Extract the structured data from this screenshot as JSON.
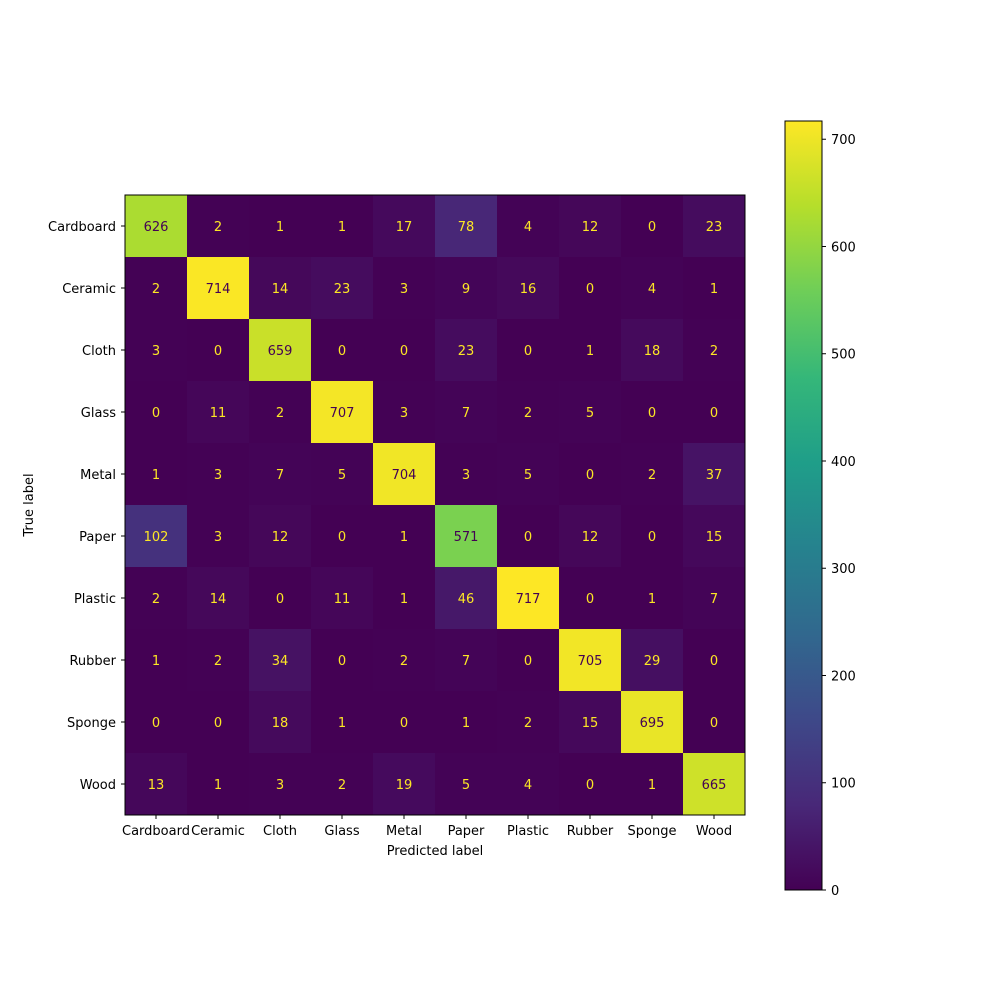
{
  "chart_data": {
    "type": "heatmap",
    "xlabel": "Predicted label",
    "ylabel": "True label",
    "x_categories": [
      "Cardboard",
      "Ceramic",
      "Cloth",
      "Glass",
      "Metal",
      "Paper",
      "Plastic",
      "Rubber",
      "Sponge",
      "Wood"
    ],
    "y_categories": [
      "Cardboard",
      "Ceramic",
      "Cloth",
      "Glass",
      "Metal",
      "Paper",
      "Plastic",
      "Rubber",
      "Sponge",
      "Wood"
    ],
    "values": [
      [
        626,
        2,
        1,
        1,
        17,
        78,
        4,
        12,
        0,
        23
      ],
      [
        2,
        714,
        14,
        23,
        3,
        9,
        16,
        0,
        4,
        1
      ],
      [
        3,
        0,
        659,
        0,
        0,
        23,
        0,
        1,
        18,
        2
      ],
      [
        0,
        11,
        2,
        707,
        3,
        7,
        2,
        5,
        0,
        0
      ],
      [
        1,
        3,
        7,
        5,
        704,
        3,
        5,
        0,
        2,
        37
      ],
      [
        102,
        3,
        12,
        0,
        1,
        571,
        0,
        12,
        0,
        15
      ],
      [
        2,
        14,
        0,
        11,
        1,
        46,
        717,
        0,
        1,
        7
      ],
      [
        1,
        2,
        34,
        0,
        2,
        7,
        0,
        705,
        29,
        0
      ],
      [
        0,
        0,
        18,
        1,
        0,
        1,
        2,
        15,
        695,
        0
      ],
      [
        13,
        1,
        3,
        2,
        19,
        5,
        4,
        0,
        1,
        665
      ]
    ],
    "colormap": "viridis",
    "value_range": [
      0,
      717
    ],
    "colorbar_ticks": [
      0,
      100,
      200,
      300,
      400,
      500,
      600,
      700
    ],
    "text_color_light": "#fde725",
    "text_color_dark": "#440154",
    "grid": false,
    "legend": "colorbar-right"
  }
}
